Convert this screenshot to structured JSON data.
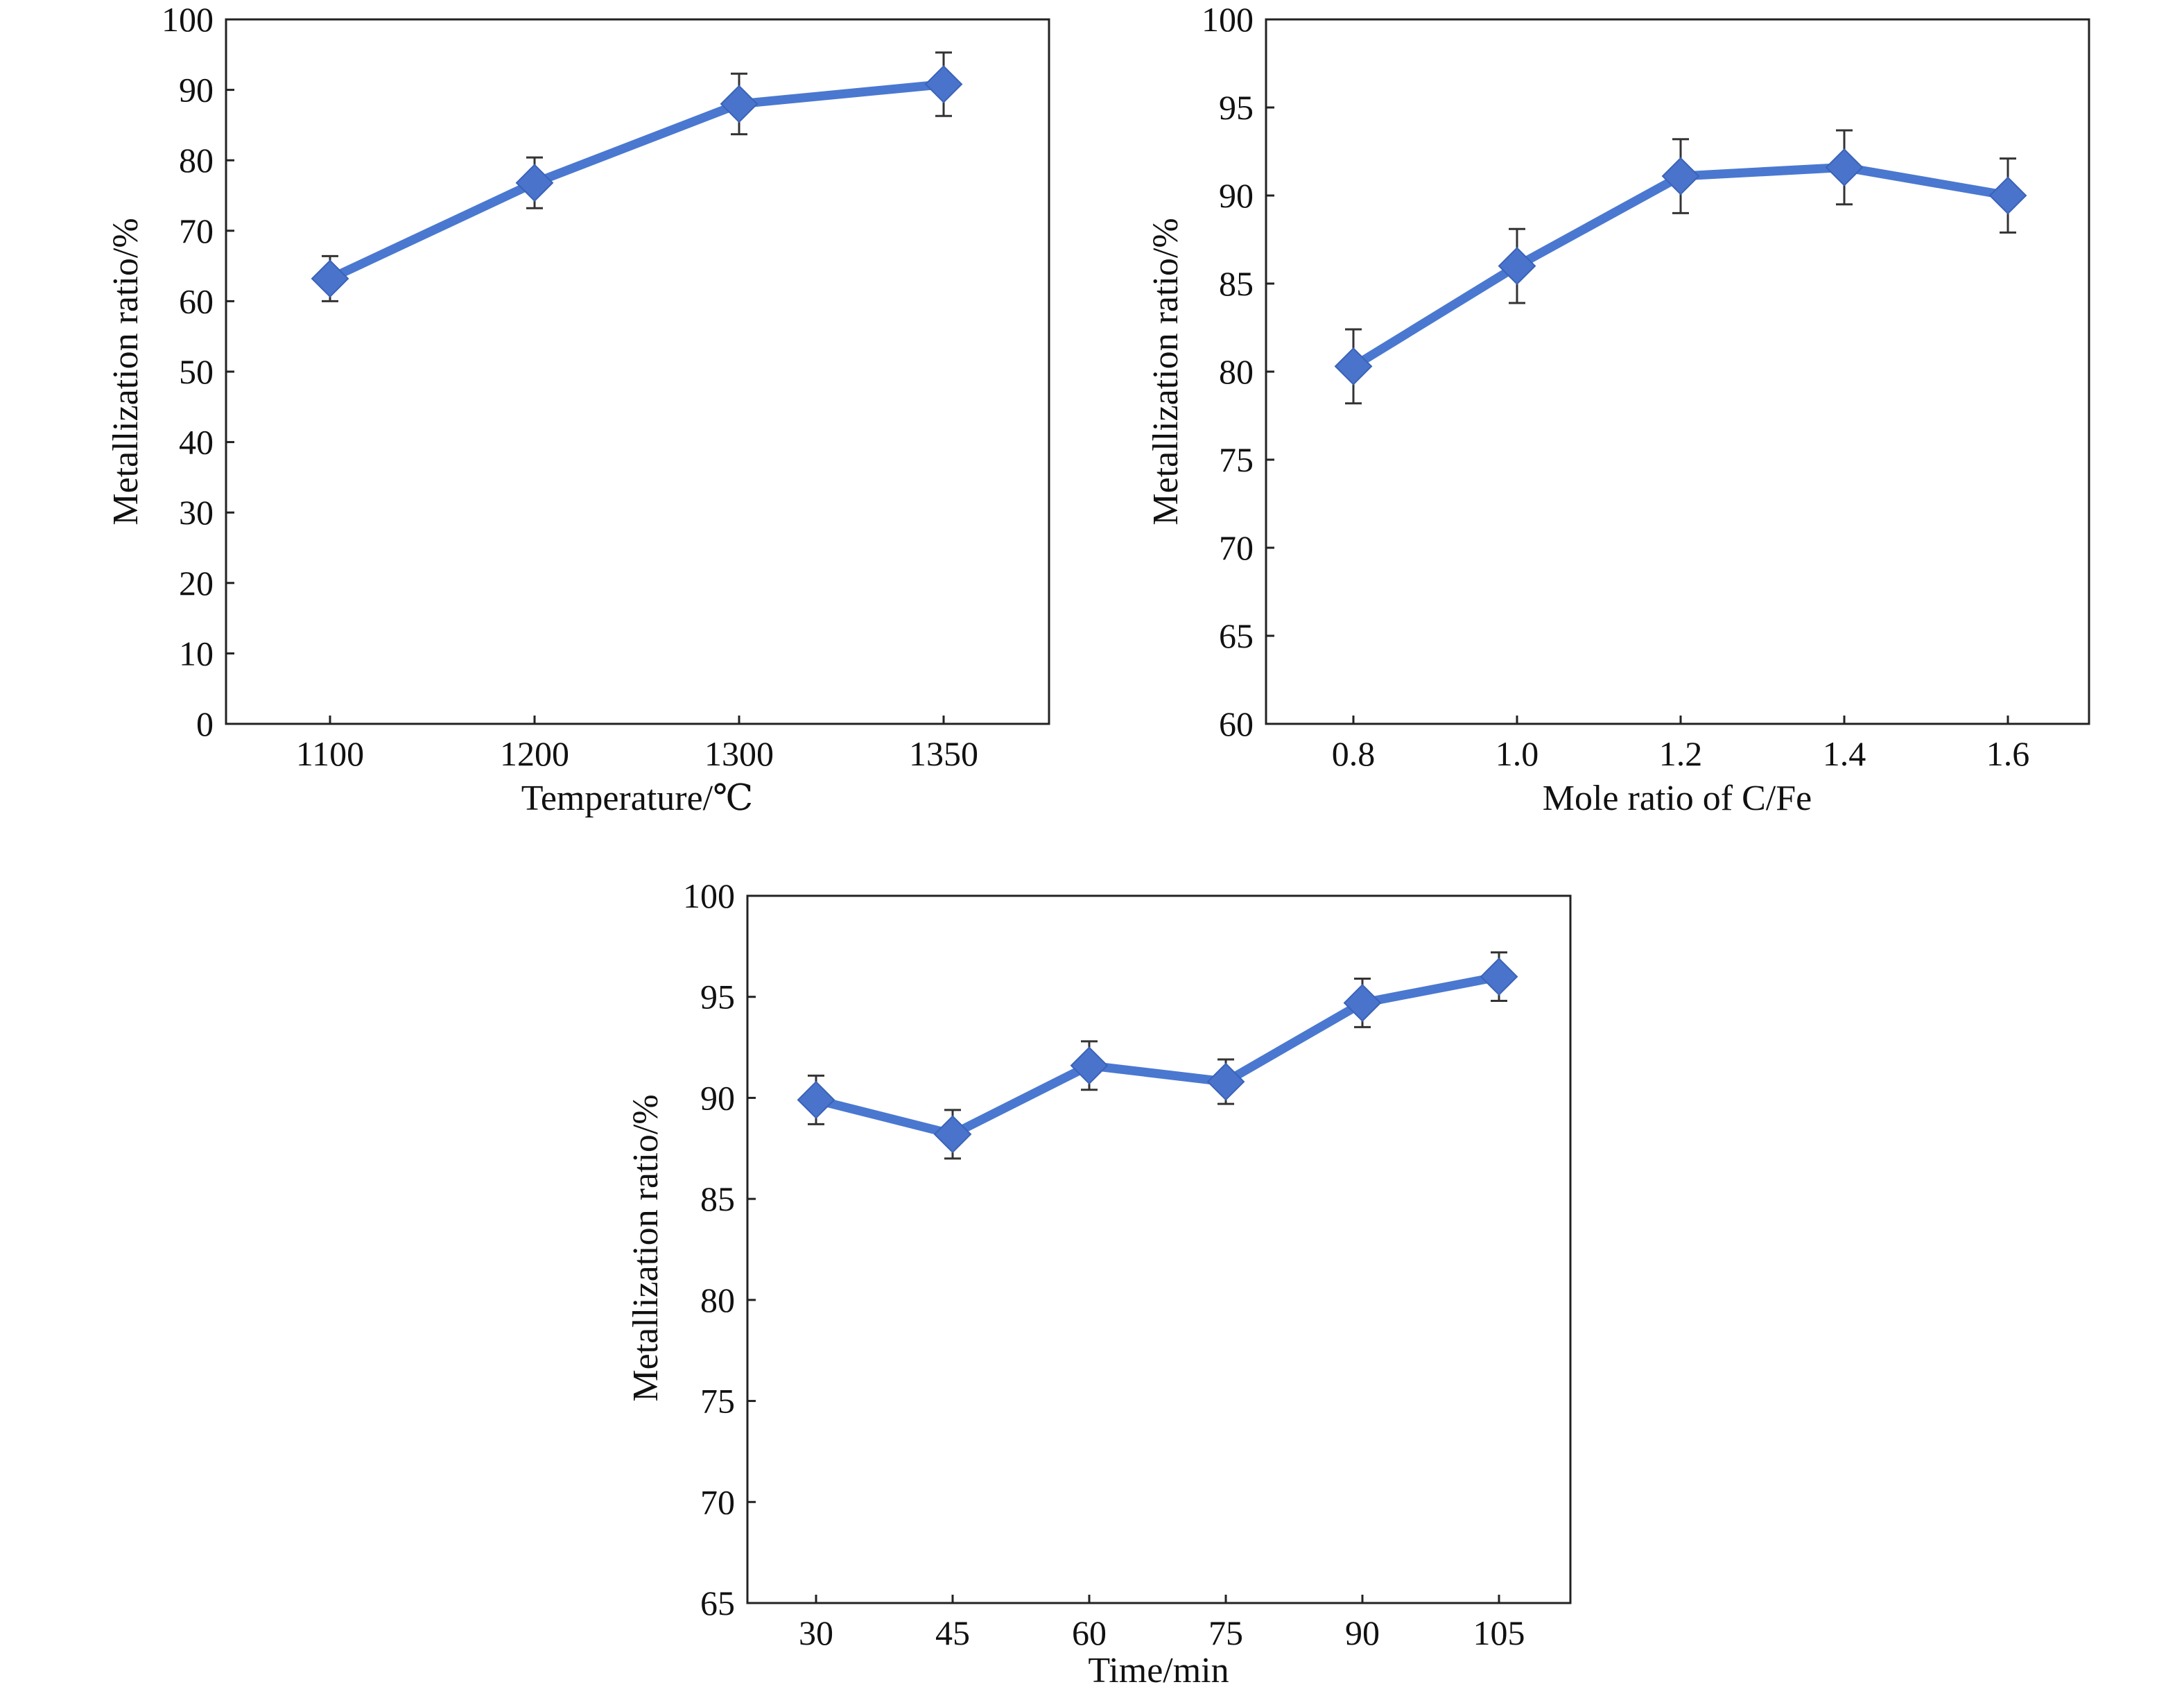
{
  "colors": {
    "line": "#4a78d0",
    "marker": "#4a74cc",
    "errorbar": "#333333",
    "axis": "#222222"
  },
  "chart_data": [
    {
      "type": "line",
      "xlabel": "Temperature/℃",
      "ylabel": "Metallization ratio/%",
      "categories": [
        "1100",
        "1200",
        "1300",
        "1350"
      ],
      "yticks": [
        "0",
        "10",
        "20",
        "30",
        "40",
        "50",
        "60",
        "70",
        "80",
        "90",
        "100"
      ],
      "ylim": [
        0,
        100
      ],
      "series": [
        {
          "values": [
            63.2,
            76.8,
            88.0,
            90.8
          ],
          "error": [
            3.2,
            3.6,
            4.3,
            4.5
          ]
        }
      ],
      "grid": false,
      "marker": "diamond"
    },
    {
      "type": "line",
      "xlabel": "Mole ratio of C/Fe",
      "ylabel": "Metallization ratio/%",
      "categories": [
        "0.8",
        "1.0",
        "1.2",
        "1.4",
        "1.6"
      ],
      "yticks": [
        "60",
        "65",
        "70",
        "75",
        "80",
        "85",
        "90",
        "95",
        "100"
      ],
      "ylim": [
        60,
        100
      ],
      "series": [
        {
          "values": [
            80.3,
            86.0,
            91.1,
            91.6,
            90.0
          ],
          "error": [
            2.1,
            2.1,
            2.1,
            2.1,
            2.1
          ]
        }
      ],
      "grid": false,
      "marker": "diamond"
    },
    {
      "type": "line",
      "xlabel": "Time/min",
      "ylabel": "Metallization ratio/%",
      "categories": [
        "30",
        "45",
        "60",
        "75",
        "90",
        "105"
      ],
      "yticks": [
        "65",
        "70",
        "75",
        "80",
        "85",
        "90",
        "95",
        "100"
      ],
      "ylim": [
        65,
        100
      ],
      "series": [
        {
          "values": [
            89.9,
            88.2,
            91.6,
            90.8,
            94.7,
            96.0
          ],
          "error": [
            1.2,
            1.2,
            1.2,
            1.1,
            1.2,
            1.2
          ]
        }
      ],
      "grid": false,
      "marker": "diamond"
    }
  ]
}
